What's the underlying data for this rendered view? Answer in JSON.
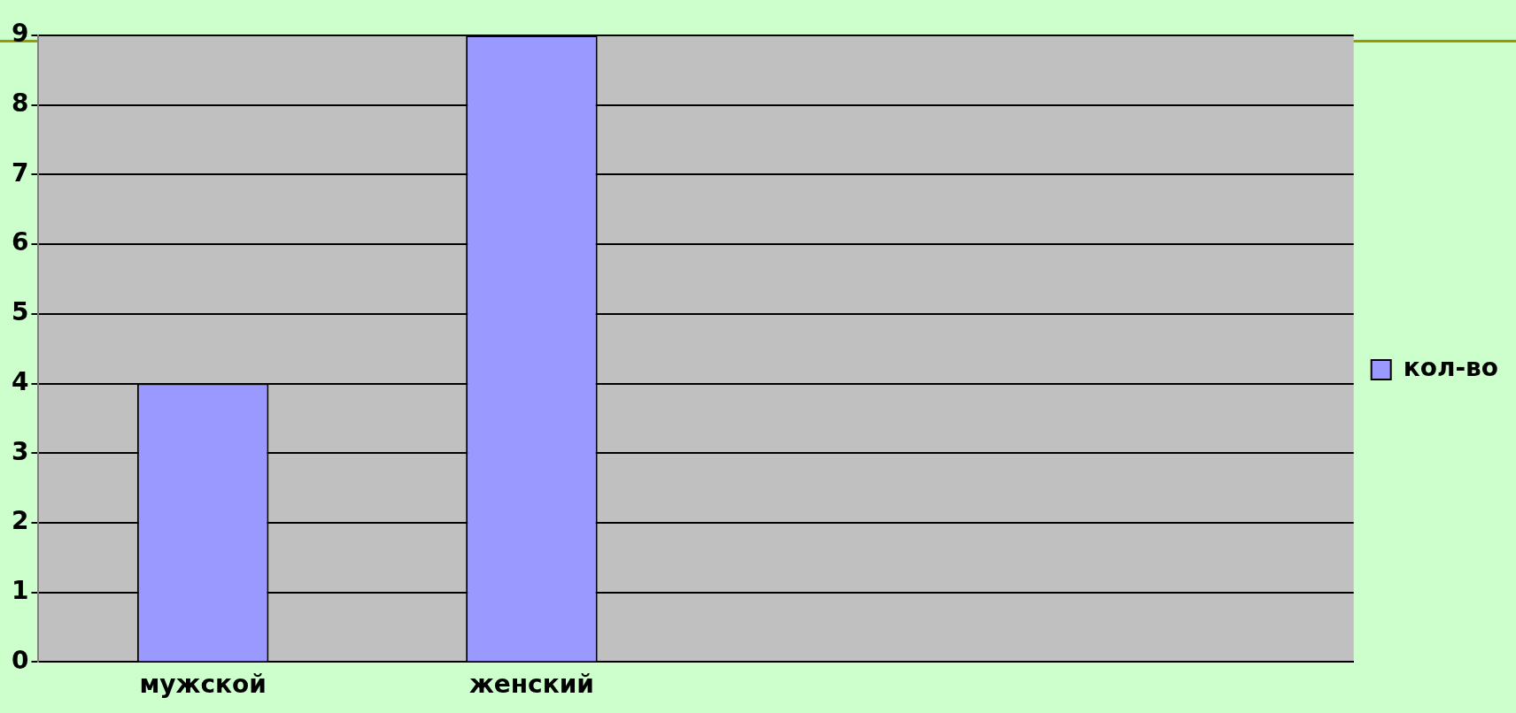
{
  "chart_data": {
    "type": "bar",
    "categories": [
      "мужской",
      "женский",
      null,
      null
    ],
    "series": [
      {
        "name": "кол-во",
        "color": "#9999ff",
        "values": [
          4,
          9,
          null,
          null
        ]
      }
    ],
    "ylim": [
      0,
      9
    ],
    "yticks": [
      0,
      1,
      2,
      3,
      4,
      5,
      6,
      7,
      8,
      9
    ],
    "grid": "y",
    "legend": "right"
  }
}
